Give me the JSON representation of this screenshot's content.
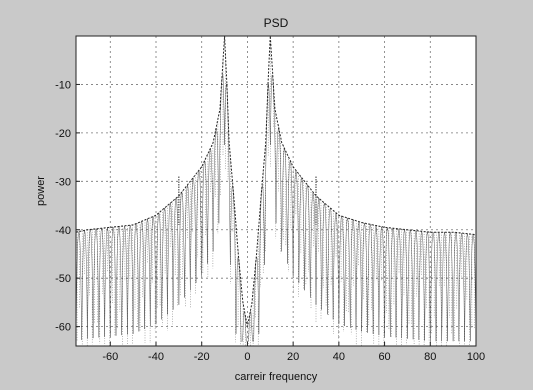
{
  "chart_data": {
    "type": "line",
    "title": "PSD",
    "xlabel": "carreir frequency",
    "ylabel": "power",
    "xlim": [
      -75,
      100
    ],
    "ylim": [
      -64,
      0
    ],
    "xticks": [
      -60,
      -40,
      -20,
      0,
      20,
      40,
      60,
      80,
      100
    ],
    "yticks": [
      -10,
      -20,
      -30,
      -40,
      -50,
      -60
    ],
    "xtick_labels": [
      "-60",
      "-40",
      "-20",
      "0",
      "20",
      "40",
      "60",
      "80",
      "100"
    ],
    "ytick_labels": [
      "-10",
      "-20",
      "-30",
      "-40",
      "-50",
      "-60"
    ],
    "grid": true,
    "series": [
      {
        "color": "#2a2a2a",
        "x": [
          -75,
          -70,
          -60,
          -50,
          -40,
          -35,
          -30,
          -25,
          -20,
          -15,
          -12,
          -10,
          -9,
          -8,
          -6,
          -4,
          -2,
          0,
          2,
          4,
          6,
          8,
          9,
          10,
          12,
          15,
          20,
          25,
          30,
          35,
          40,
          50,
          60,
          70,
          80,
          90,
          100
        ],
        "y": [
          -40.5,
          -40,
          -39.5,
          -39,
          -37,
          -35,
          -33,
          -30,
          -27,
          -22,
          -15,
          0,
          -10,
          -22,
          -33,
          -45,
          -55,
          -60,
          -55,
          -45,
          -33,
          -22,
          -10,
          0,
          -15,
          -22,
          -27,
          -30,
          -33,
          -35,
          -37,
          -38.5,
          -39.5,
          -40,
          -40.5,
          -40.5,
          -41
        ]
      }
    ],
    "side_peaks": [
      {
        "x": -30,
        "y": -29
      },
      {
        "x": 30,
        "y": -29
      }
    ]
  }
}
